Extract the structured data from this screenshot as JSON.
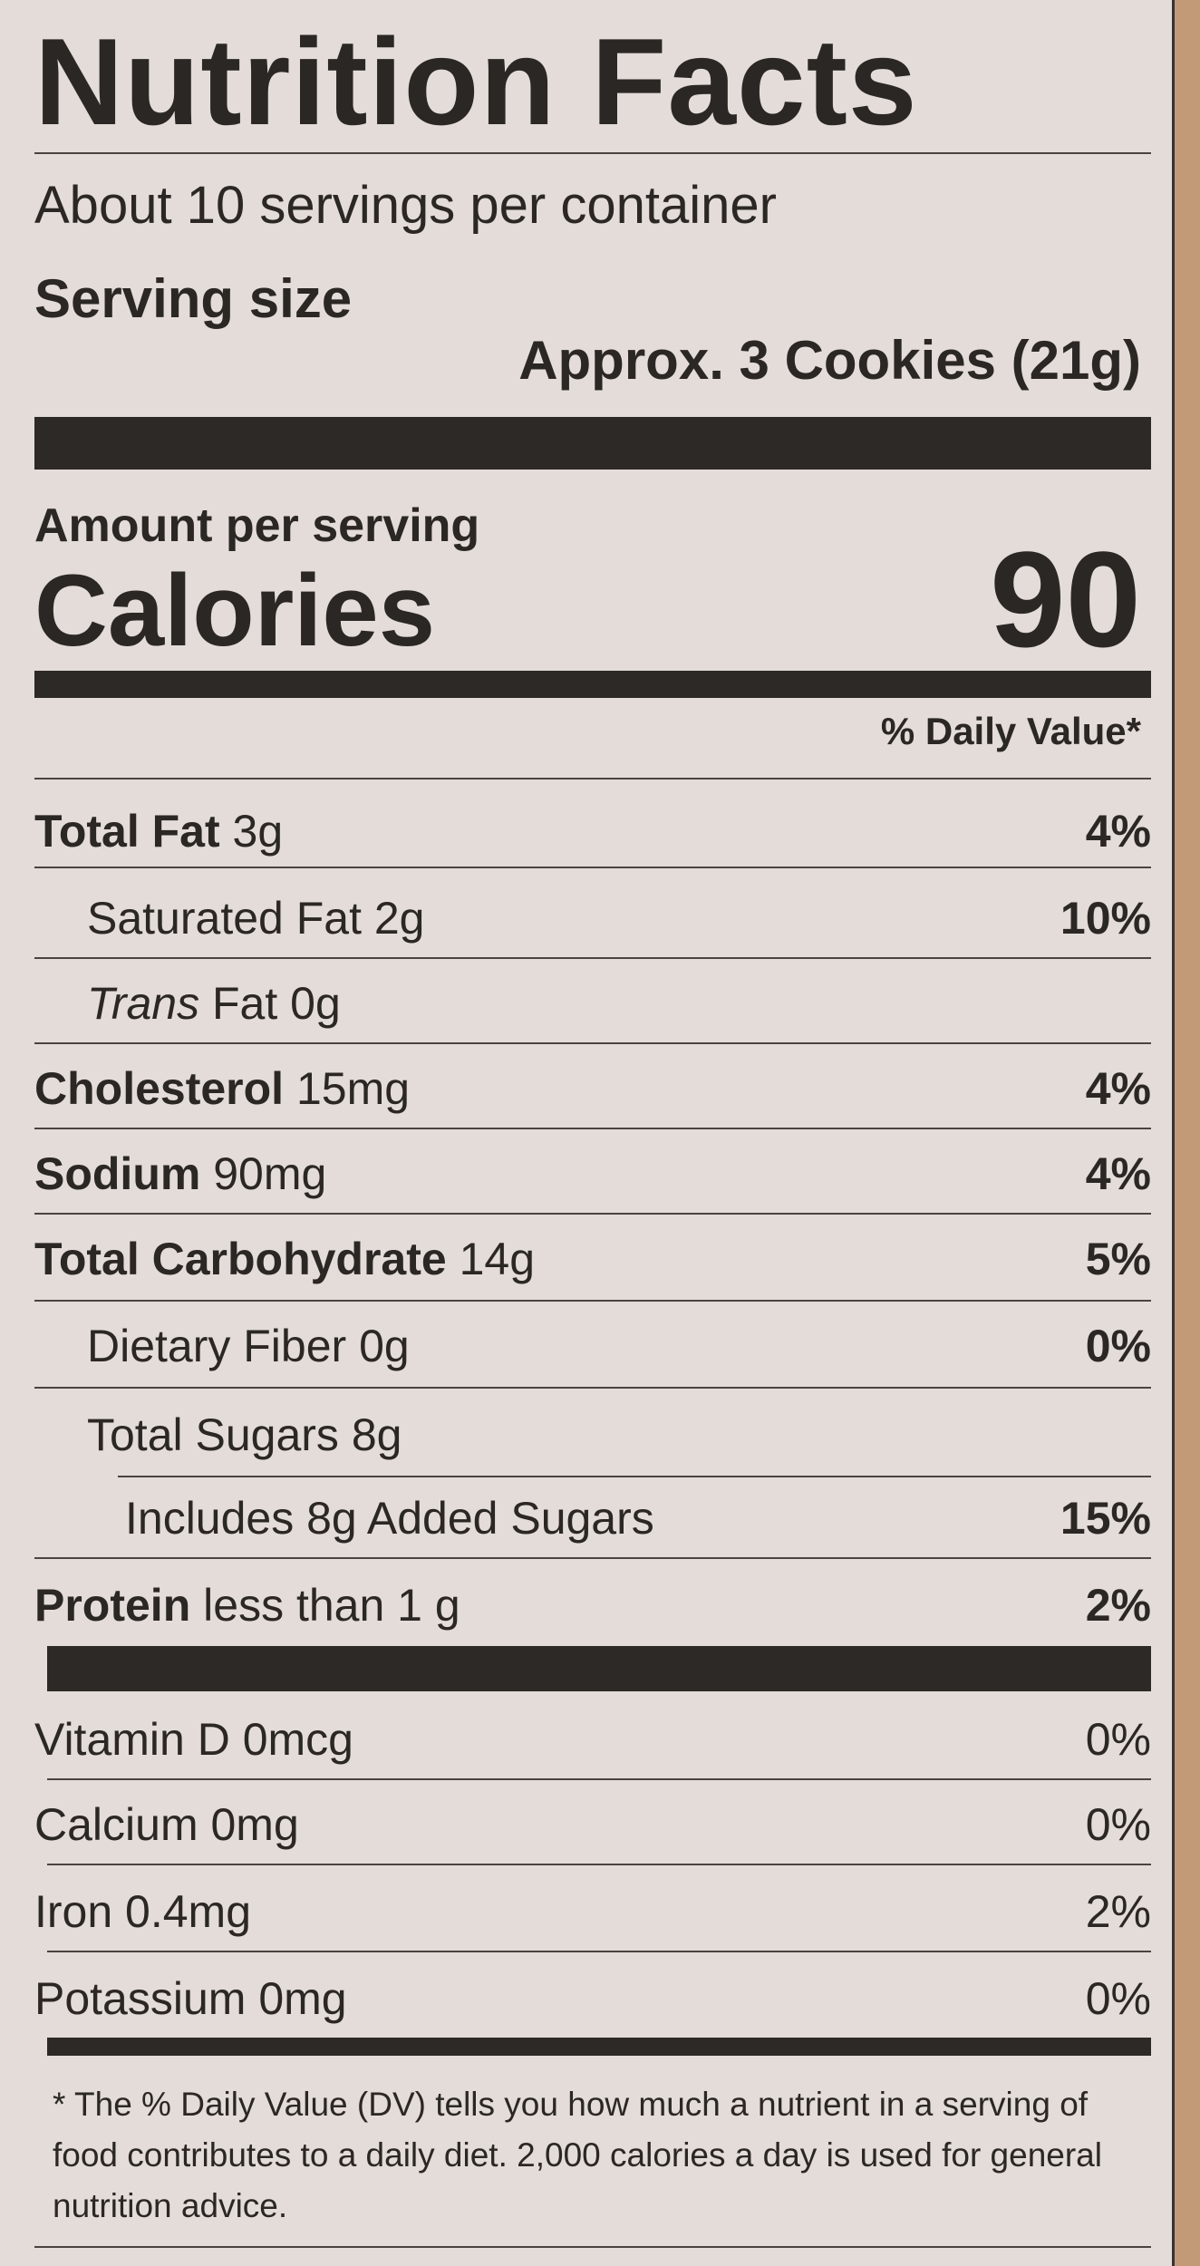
{
  "label": {
    "title": "Nutrition Facts",
    "servings_per_container": "About 10 servings per container",
    "serving_size_label": "Serving size",
    "serving_size_value": "Approx. 3 Cookies (21g)",
    "amount_per_serving": "Amount per serving",
    "calories_label": "Calories",
    "calories_value": "90",
    "daily_value_header": "% Daily Value*"
  },
  "nutrients": [
    {
      "name": "Total Fat",
      "amount": "3g",
      "dv": "4%"
    },
    {
      "name": "Saturated Fat",
      "amount": "2g",
      "dv": "10%"
    },
    {
      "name_italic": "Trans",
      "name": "Fat",
      "amount": "0g",
      "dv": ""
    },
    {
      "name": "Cholesterol",
      "amount": "15mg",
      "dv": "4%"
    },
    {
      "name": "Sodium",
      "amount": "90mg",
      "dv": "4%"
    },
    {
      "name": "Total Carbohydrate",
      "amount": "14g",
      "dv": "5%"
    },
    {
      "name": "Dietary Fiber",
      "amount": "0g",
      "dv": "0%"
    },
    {
      "name": "Total Sugars",
      "amount": "8g",
      "dv": ""
    },
    {
      "name": "Includes 8g Added Sugars",
      "amount": "",
      "dv": "15%"
    },
    {
      "name": "Protein",
      "amount": "less than 1 g",
      "dv": "2%"
    }
  ],
  "vitamins": [
    {
      "name": "Vitamin D 0mcg",
      "dv": "0%"
    },
    {
      "name": "Calcium 0mg",
      "dv": "0%"
    },
    {
      "name": "Iron 0.4mg",
      "dv": "2%"
    },
    {
      "name": "Potassium 0mg",
      "dv": "0%"
    }
  ],
  "footnote": "* The % Daily Value (DV) tells you how much a nutrient in a serving of food contributes to a daily diet. 2,000 calories a day is used for general nutrition advice."
}
